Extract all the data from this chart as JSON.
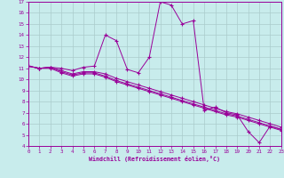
{
  "xlabel": "Windchill (Refroidissement éolien,°C)",
  "background_color": "#c8ecec",
  "line_color": "#990099",
  "grid_color": "#aacccc",
  "xlim": [
    0,
    23
  ],
  "ylim": [
    4,
    17
  ],
  "xticks": [
    0,
    1,
    2,
    3,
    4,
    5,
    6,
    7,
    8,
    9,
    10,
    11,
    12,
    13,
    14,
    15,
    16,
    17,
    18,
    19,
    20,
    21,
    22,
    23
  ],
  "yticks": [
    4,
    5,
    6,
    7,
    8,
    9,
    10,
    11,
    12,
    13,
    14,
    15,
    16,
    17
  ],
  "curves": [
    {
      "x": [
        0,
        1,
        2,
        3,
        4,
        5,
        6,
        7,
        8,
        9,
        10,
        11,
        12,
        13,
        14,
        15,
        16,
        17,
        18,
        19,
        20,
        21,
        22,
        23
      ],
      "y": [
        11.2,
        11.0,
        11.1,
        11.0,
        10.8,
        11.1,
        11.2,
        14.0,
        13.5,
        10.9,
        10.6,
        12.0,
        17.0,
        16.7,
        15.0,
        15.3,
        7.2,
        7.5,
        7.0,
        6.8,
        5.3,
        4.3,
        5.8,
        5.5
      ]
    },
    {
      "x": [
        0,
        1,
        2,
        3,
        4,
        5,
        6,
        7,
        8,
        9,
        10,
        11,
        12,
        13,
        14,
        15,
        16,
        17,
        18,
        19,
        20,
        21,
        22,
        23
      ],
      "y": [
        11.2,
        11.0,
        11.1,
        10.8,
        10.5,
        10.7,
        10.7,
        10.5,
        10.1,
        9.8,
        9.5,
        9.2,
        8.9,
        8.6,
        8.3,
        8.0,
        7.7,
        7.4,
        7.1,
        6.9,
        6.6,
        6.3,
        6.0,
        5.7
      ]
    },
    {
      "x": [
        0,
        1,
        2,
        3,
        4,
        5,
        6,
        7,
        8,
        9,
        10,
        11,
        12,
        13,
        14,
        15,
        16,
        17,
        18,
        19,
        20,
        21,
        22,
        23
      ],
      "y": [
        11.2,
        11.0,
        11.1,
        10.7,
        10.4,
        10.6,
        10.6,
        10.3,
        9.9,
        9.6,
        9.3,
        9.0,
        8.7,
        8.4,
        8.1,
        7.8,
        7.5,
        7.2,
        6.9,
        6.7,
        6.4,
        6.1,
        5.8,
        5.5
      ]
    },
    {
      "x": [
        0,
        1,
        2,
        3,
        4,
        5,
        6,
        7,
        8,
        9,
        10,
        11,
        12,
        13,
        14,
        15,
        16,
        17,
        18,
        19,
        20,
        21,
        22,
        23
      ],
      "y": [
        11.2,
        11.0,
        11.0,
        10.6,
        10.3,
        10.5,
        10.5,
        10.2,
        9.8,
        9.5,
        9.2,
        8.9,
        8.6,
        8.3,
        8.0,
        7.7,
        7.4,
        7.1,
        6.8,
        6.6,
        6.3,
        6.0,
        5.7,
        5.4
      ]
    }
  ]
}
